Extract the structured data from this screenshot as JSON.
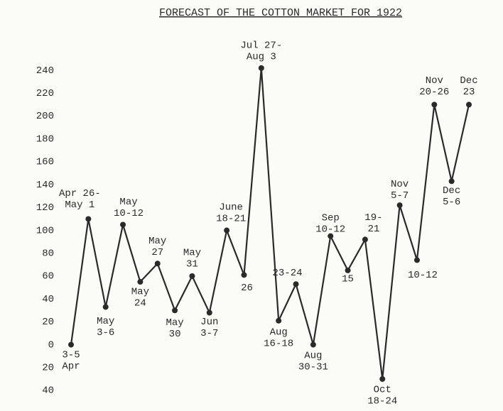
{
  "chart_data": {
    "type": "line",
    "title": "FORECAST OF THE COTTON MARKET FOR 1922",
    "categories": [
      [
        "3-5",
        "Apr"
      ],
      [
        "Apr 26-",
        "May 1"
      ],
      [
        "May",
        "3-6"
      ],
      [
        "May",
        "10-12"
      ],
      [
        "May",
        "24"
      ],
      [
        "May",
        "27"
      ],
      [
        "May",
        "30"
      ],
      [
        "May",
        "31"
      ],
      [
        "Jun",
        "3-7"
      ],
      [
        "June",
        "18-21"
      ],
      [
        "26"
      ],
      [
        "Jul 27-",
        "Aug 3"
      ],
      [
        "Aug",
        "16-18"
      ],
      [
        "23-24"
      ],
      [
        "Aug",
        "30-31"
      ],
      [
        "Sep",
        "10-12"
      ],
      [
        "15"
      ],
      [
        "19-",
        "21"
      ],
      [
        "Oct",
        "18-24"
      ],
      [
        "Nov",
        "5-7"
      ],
      [
        "10-12"
      ],
      [
        "Nov",
        "20-26"
      ],
      [
        "Dec",
        "5-6"
      ],
      [
        "Dec",
        "23"
      ]
    ],
    "values": [
      0,
      110,
      33,
      105,
      55,
      71,
      30,
      60,
      28,
      100,
      61,
      242,
      21,
      53,
      0,
      95,
      65,
      92,
      -30,
      122,
      74,
      210,
      143,
      210
    ],
    "color": "#2a2a2a",
    "ylim": [
      -40,
      250
    ],
    "yticks": [
      {
        "value": -40,
        "label": "40"
      },
      {
        "value": -20,
        "label": "20"
      },
      0,
      20,
      40,
      60,
      80,
      100,
      120,
      140,
      160,
      180,
      200,
      220,
      240
    ]
  }
}
